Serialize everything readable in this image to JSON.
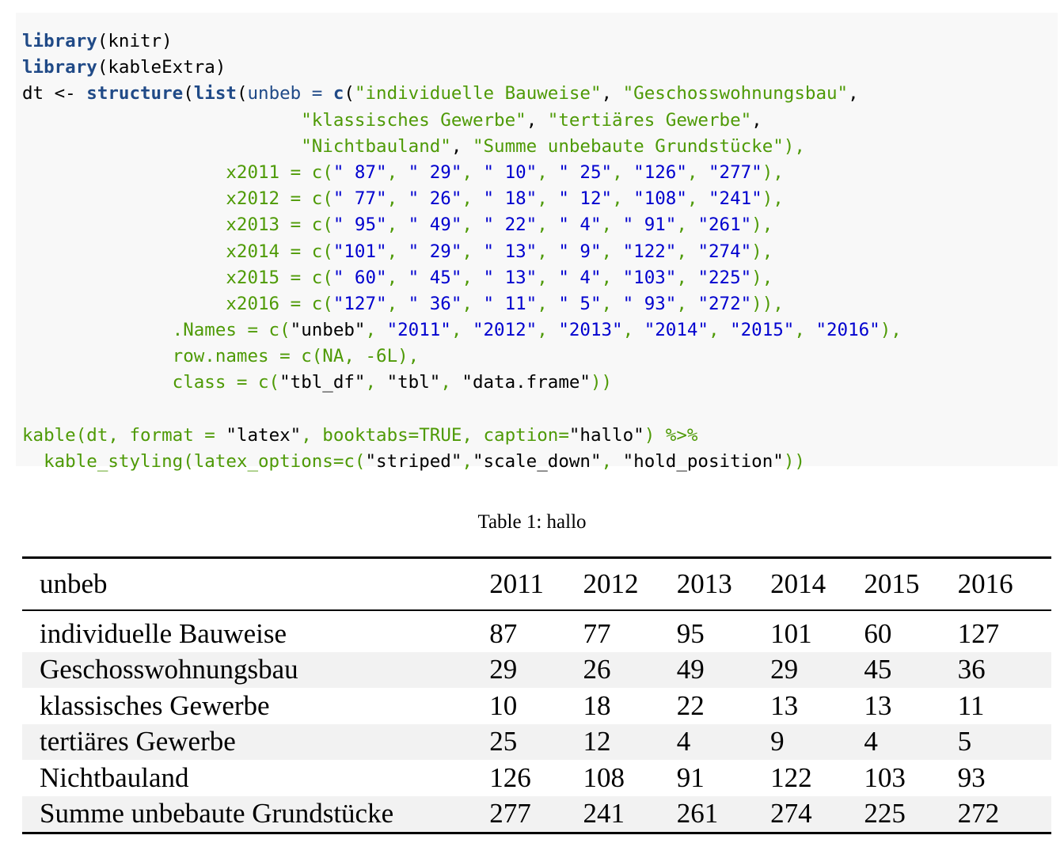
{
  "code_lines": [
    [
      {
        "t": "library",
        "c": "fn"
      },
      {
        "t": "(knitr)",
        "c": "tx"
      }
    ],
    [
      {
        "t": "library",
        "c": "fn"
      },
      {
        "t": "(kableExtra)",
        "c": "tx"
      }
    ],
    [
      {
        "t": "dt <- ",
        "c": "tx"
      },
      {
        "t": "structure",
        "c": "fn"
      },
      {
        "t": "(",
        "c": "tx"
      },
      {
        "t": "list",
        "c": "fn"
      },
      {
        "t": "(",
        "c": "tx"
      },
      {
        "t": "unbeb = ",
        "c": "kw"
      },
      {
        "t": "c",
        "c": "fn"
      },
      {
        "t": "(",
        "c": "tx"
      },
      {
        "t": "\"individuelle Bauweise\"",
        "c": "str"
      },
      {
        "t": ", ",
        "c": "tx"
      },
      {
        "t": "\"Geschosswohnungsbau\"",
        "c": "str"
      },
      {
        "t": ",",
        "c": "tx"
      }
    ],
    [
      {
        "t": "                          ",
        "c": "tx"
      },
      {
        "t": "\"klassisches Gewerbe\"",
        "c": "str"
      },
      {
        "t": ", ",
        "c": "tx"
      },
      {
        "t": "\"tertiäres Gewerbe\"",
        "c": "str"
      },
      {
        "t": ",",
        "c": "tx"
      }
    ],
    [
      {
        "t": "                          ",
        "c": "tx"
      },
      {
        "t": "\"Nichtbauland\"",
        "c": "str"
      },
      {
        "t": ", ",
        "c": "tx"
      },
      {
        "t": "\"Summe unbebaute Grundstücke\"",
        "c": "str"
      },
      {
        "t": "),",
        "c": "str"
      }
    ],
    [
      {
        "t": "                   x2011 = c(",
        "c": "str"
      },
      {
        "t": "\" 87\"",
        "c": "num"
      },
      {
        "t": ", ",
        "c": "str"
      },
      {
        "t": "\" 29\"",
        "c": "num"
      },
      {
        "t": ", ",
        "c": "str"
      },
      {
        "t": "\" 10\"",
        "c": "num"
      },
      {
        "t": ", ",
        "c": "str"
      },
      {
        "t": "\" 25\"",
        "c": "num"
      },
      {
        "t": ", ",
        "c": "str"
      },
      {
        "t": "\"126\"",
        "c": "num"
      },
      {
        "t": ", ",
        "c": "str"
      },
      {
        "t": "\"277\"",
        "c": "num"
      },
      {
        "t": "),",
        "c": "str"
      }
    ],
    [
      {
        "t": "                   x2012 = c(",
        "c": "str"
      },
      {
        "t": "\" 77\"",
        "c": "num"
      },
      {
        "t": ", ",
        "c": "str"
      },
      {
        "t": "\" 26\"",
        "c": "num"
      },
      {
        "t": ", ",
        "c": "str"
      },
      {
        "t": "\" 18\"",
        "c": "num"
      },
      {
        "t": ", ",
        "c": "str"
      },
      {
        "t": "\" 12\"",
        "c": "num"
      },
      {
        "t": ", ",
        "c": "str"
      },
      {
        "t": "\"108\"",
        "c": "num"
      },
      {
        "t": ", ",
        "c": "str"
      },
      {
        "t": "\"241\"",
        "c": "num"
      },
      {
        "t": "),",
        "c": "str"
      }
    ],
    [
      {
        "t": "                   x2013 = c(",
        "c": "str"
      },
      {
        "t": "\" 95\"",
        "c": "num"
      },
      {
        "t": ", ",
        "c": "str"
      },
      {
        "t": "\" 49\"",
        "c": "num"
      },
      {
        "t": ", ",
        "c": "str"
      },
      {
        "t": "\" 22\"",
        "c": "num"
      },
      {
        "t": ", ",
        "c": "str"
      },
      {
        "t": "\" 4\"",
        "c": "num"
      },
      {
        "t": ", ",
        "c": "str"
      },
      {
        "t": "\" 91\"",
        "c": "num"
      },
      {
        "t": ", ",
        "c": "str"
      },
      {
        "t": "\"261\"",
        "c": "num"
      },
      {
        "t": "),",
        "c": "str"
      }
    ],
    [
      {
        "t": "                   x2014 = c(",
        "c": "str"
      },
      {
        "t": "\"101\"",
        "c": "num"
      },
      {
        "t": ", ",
        "c": "str"
      },
      {
        "t": "\" 29\"",
        "c": "num"
      },
      {
        "t": ", ",
        "c": "str"
      },
      {
        "t": "\" 13\"",
        "c": "num"
      },
      {
        "t": ", ",
        "c": "str"
      },
      {
        "t": "\" 9\"",
        "c": "num"
      },
      {
        "t": ", ",
        "c": "str"
      },
      {
        "t": "\"122\"",
        "c": "num"
      },
      {
        "t": ", ",
        "c": "str"
      },
      {
        "t": "\"274\"",
        "c": "num"
      },
      {
        "t": "),",
        "c": "str"
      }
    ],
    [
      {
        "t": "                   x2015 = c(",
        "c": "str"
      },
      {
        "t": "\" 60\"",
        "c": "num"
      },
      {
        "t": ", ",
        "c": "str"
      },
      {
        "t": "\" 45\"",
        "c": "num"
      },
      {
        "t": ", ",
        "c": "str"
      },
      {
        "t": "\" 13\"",
        "c": "num"
      },
      {
        "t": ", ",
        "c": "str"
      },
      {
        "t": "\" 4\"",
        "c": "num"
      },
      {
        "t": ", ",
        "c": "str"
      },
      {
        "t": "\"103\"",
        "c": "num"
      },
      {
        "t": ", ",
        "c": "str"
      },
      {
        "t": "\"225\"",
        "c": "num"
      },
      {
        "t": "),",
        "c": "str"
      }
    ],
    [
      {
        "t": "                   x2016 = c(",
        "c": "str"
      },
      {
        "t": "\"127\"",
        "c": "num"
      },
      {
        "t": ", ",
        "c": "str"
      },
      {
        "t": "\" 36\"",
        "c": "num"
      },
      {
        "t": ", ",
        "c": "str"
      },
      {
        "t": "\" 11\"",
        "c": "num"
      },
      {
        "t": ", ",
        "c": "str"
      },
      {
        "t": "\" 5\"",
        "c": "num"
      },
      {
        "t": ", ",
        "c": "str"
      },
      {
        "t": "\" 93\"",
        "c": "num"
      },
      {
        "t": ", ",
        "c": "str"
      },
      {
        "t": "\"272\"",
        "c": "num"
      },
      {
        "t": ")),",
        "c": "str"
      }
    ],
    [
      {
        "t": "              .Names = c(",
        "c": "str"
      },
      {
        "t": "\"unbeb\"",
        "c": "tx"
      },
      {
        "t": ", ",
        "c": "str"
      },
      {
        "t": "\"2011\"",
        "c": "num"
      },
      {
        "t": ", ",
        "c": "str"
      },
      {
        "t": "\"2012\"",
        "c": "num"
      },
      {
        "t": ", ",
        "c": "str"
      },
      {
        "t": "\"2013\"",
        "c": "num"
      },
      {
        "t": ", ",
        "c": "str"
      },
      {
        "t": "\"2014\"",
        "c": "num"
      },
      {
        "t": ", ",
        "c": "str"
      },
      {
        "t": "\"2015\"",
        "c": "num"
      },
      {
        "t": ", ",
        "c": "str"
      },
      {
        "t": "\"2016\"",
        "c": "num"
      },
      {
        "t": "),",
        "c": "str"
      }
    ],
    [
      {
        "t": "              row.names = c(NA, -6L),",
        "c": "str"
      }
    ],
    [
      {
        "t": "              class = c(",
        "c": "str"
      },
      {
        "t": "\"tbl_df\"",
        "c": "tx"
      },
      {
        "t": ", ",
        "c": "str"
      },
      {
        "t": "\"tbl\"",
        "c": "tx"
      },
      {
        "t": ", ",
        "c": "str"
      },
      {
        "t": "\"data.frame\"",
        "c": "tx"
      },
      {
        "t": "))",
        "c": "str"
      }
    ],
    [],
    [
      {
        "t": "kable(dt, format = ",
        "c": "str"
      },
      {
        "t": "\"latex\"",
        "c": "tx"
      },
      {
        "t": ", booktabs=TRUE, caption=",
        "c": "str"
      },
      {
        "t": "\"hallo\"",
        "c": "tx"
      },
      {
        "t": ") ",
        "c": "str"
      },
      {
        "t": "%>%",
        "c": "str"
      }
    ],
    [
      {
        "t": "  kable_styling(latex_options=c(",
        "c": "str"
      },
      {
        "t": "\"striped\"",
        "c": "tx"
      },
      {
        "t": ",",
        "c": "str"
      },
      {
        "t": "\"scale_down\"",
        "c": "tx"
      },
      {
        "t": ", ",
        "c": "str"
      },
      {
        "t": "\"hold_position\"",
        "c": "tx"
      },
      {
        "t": "))",
        "c": "str"
      }
    ]
  ],
  "caption": "Table 1: hallo",
  "table": {
    "headers": [
      "unbeb",
      "2011",
      "2012",
      "2013",
      "2014",
      "2015",
      "2016"
    ],
    "rows": [
      [
        "individuelle Bauweise",
        "87",
        "77",
        "95",
        "101",
        "60",
        "127"
      ],
      [
        "Geschosswohnungsbau",
        "29",
        "26",
        "49",
        "29",
        "45",
        "36"
      ],
      [
        "klassisches Gewerbe",
        "10",
        "18",
        "22",
        "13",
        "13",
        "11"
      ],
      [
        "tertiäres Gewerbe",
        "25",
        "12",
        "4",
        "9",
        "4",
        "5"
      ],
      [
        "Nichtbauland",
        "126",
        "108",
        "91",
        "122",
        "103",
        "93"
      ],
      [
        "Summe unbebaute Grundstücke",
        "277",
        "241",
        "261",
        "274",
        "225",
        "272"
      ]
    ]
  },
  "colors": {
    "code_background": "#f8f8f8",
    "stripe": "#f2f2f2",
    "code_function": "#204a87",
    "code_string": "#4e9a06",
    "code_number": "#0000cf"
  }
}
